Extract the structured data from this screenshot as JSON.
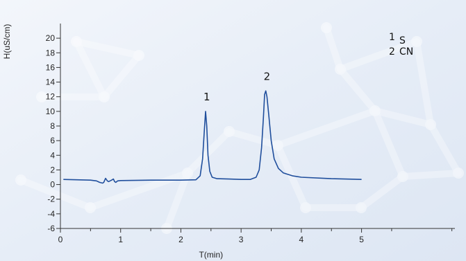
{
  "chart_data": {
    "type": "line",
    "xlabel": "T(min)",
    "ylabel": "H(uS/cm)",
    "xlim": [
      0,
      6.55
    ],
    "ylim": [
      -6,
      22
    ],
    "x_ticks": [
      0,
      1,
      2,
      3,
      4,
      5
    ],
    "y_ticks": [
      -6,
      -4,
      -2,
      0,
      2,
      4,
      6,
      8,
      10,
      12,
      14,
      16,
      18,
      20
    ],
    "series": [
      {
        "color": "#1f4e9c",
        "x": [
          0.05,
          0.5,
          0.6,
          0.65,
          0.7,
          0.72,
          0.75,
          0.78,
          0.8,
          0.85,
          0.88,
          0.9,
          0.92,
          0.95,
          1.0,
          1.5,
          2.0,
          2.25,
          2.32,
          2.36,
          2.39,
          2.41,
          2.43,
          2.45,
          2.48,
          2.52,
          2.6,
          2.8,
          3.0,
          3.15,
          3.25,
          3.3,
          3.34,
          3.37,
          3.39,
          3.41,
          3.43,
          3.46,
          3.5,
          3.55,
          3.62,
          3.7,
          3.85,
          4.0,
          4.5,
          5.0
        ],
        "y": [
          0.7,
          0.6,
          0.5,
          0.3,
          0.2,
          0.3,
          0.85,
          0.5,
          0.4,
          0.6,
          0.75,
          0.4,
          0.3,
          0.5,
          0.55,
          0.6,
          0.6,
          0.65,
          1.2,
          3.5,
          7.5,
          10.0,
          8.0,
          4.0,
          1.8,
          1.0,
          0.8,
          0.75,
          0.7,
          0.7,
          1.0,
          2.0,
          5.0,
          9.0,
          12.3,
          12.8,
          12.0,
          9.5,
          6.0,
          3.5,
          2.2,
          1.6,
          1.2,
          1.0,
          0.8,
          0.7
        ]
      }
    ],
    "peak_annotations": [
      {
        "label": "1",
        "x": 2.43,
        "y": 11.5
      },
      {
        "label": "2",
        "x": 3.43,
        "y": 14.3
      }
    ],
    "legend": {
      "placement": "top-right",
      "entries": [
        {
          "num": "1",
          "name": "S"
        },
        {
          "num": "2",
          "name": "CN"
        }
      ]
    }
  }
}
